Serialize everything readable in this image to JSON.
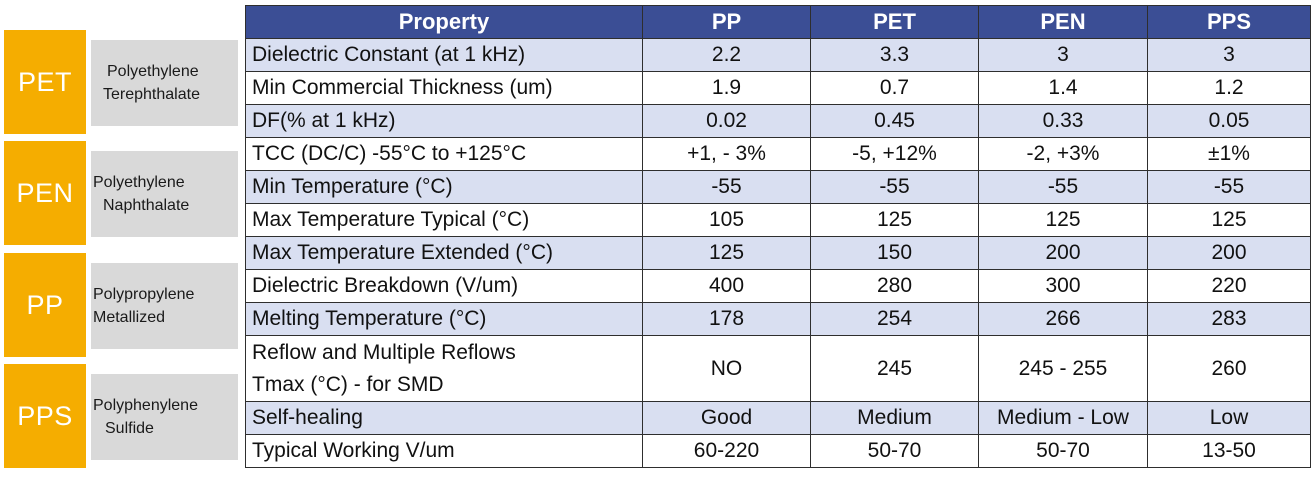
{
  "legend": [
    {
      "abbr": "PET",
      "name_line1": "Polyethylene",
      "name_line2": "Terephthalate"
    },
    {
      "abbr": "PEN",
      "name_line1": "Polyethylene",
      "name_line2": "Naphthalate"
    },
    {
      "abbr": "PP",
      "name_line1": "Polypropylene",
      "name_line2": "Metallized"
    },
    {
      "abbr": "PPS",
      "name_line1": "Polyphenylene",
      "name_line2": "Sulfide"
    }
  ],
  "table": {
    "headers": [
      "Property",
      "PP",
      "PET",
      "PEN",
      "PPS"
    ],
    "rows": [
      {
        "property": "Dielectric Constant (at 1 kHz)",
        "pp": "2.2",
        "pet": "3.3",
        "pen": "3",
        "pps": "3"
      },
      {
        "property": "Min Commercial Thickness (um)",
        "pp": "1.9",
        "pet": "0.7",
        "pen": "1.4",
        "pps": "1.2"
      },
      {
        "property": "DF(% at 1 kHz)",
        "pp": "0.02",
        "pet": "0.45",
        "pen": "0.33",
        "pps": "0.05"
      },
      {
        "property": "TCC (DC/C) -55°C to +125°C",
        "pp": "+1, - 3%",
        "pet": "-5, +12%",
        "pen": "-2, +3%",
        "pps": "±1%"
      },
      {
        "property": "Min Temperature (°C)",
        "pp": "-55",
        "pet": "-55",
        "pen": "-55",
        "pps": "-55"
      },
      {
        "property": "Max Temperature Typical (°C)",
        "pp": "105",
        "pet": "125",
        "pen": "125",
        "pps": "125"
      },
      {
        "property": "Max Temperature Extended (°C)",
        "pp": "125",
        "pet": "150",
        "pen": "200",
        "pps": "200"
      },
      {
        "property": "Dielectric Breakdown (V/um)",
        "pp": "400",
        "pet": "280",
        "pen": "300",
        "pps": "220"
      },
      {
        "property": "Melting Temperature (°C)",
        "pp": "178",
        "pet": "254",
        "pen": "266",
        "pps": "283"
      },
      {
        "property_line1": "Reflow and Multiple Reflows",
        "property_line2": "Tmax (°C) - for SMD",
        "pp": "NO",
        "pet": "245",
        "pen": "245 - 255",
        "pps": "260"
      },
      {
        "property": "Self-healing",
        "pp": "Good",
        "pet": "Medium",
        "pen": "Medium - Low",
        "pps": "Low"
      },
      {
        "property": "Typical Working V/um",
        "pp": "60-220",
        "pet": "50-70",
        "pen": "50-70",
        "pps": "13-50"
      }
    ]
  },
  "colors": {
    "header_bg": "#3b4e95",
    "row_shade": "#d9dff1",
    "badge": "#f5ad00",
    "name_bg": "#d9d9d9"
  }
}
